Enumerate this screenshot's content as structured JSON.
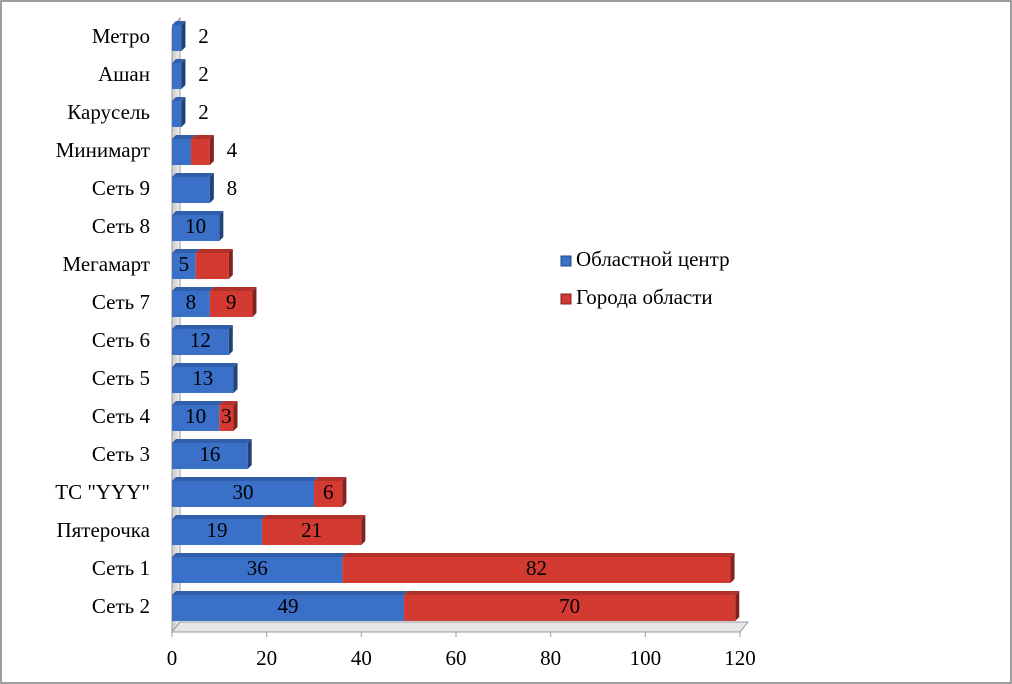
{
  "chart_data": {
    "type": "bar",
    "orientation": "horizontal",
    "stacked": true,
    "categories": [
      "Метро",
      "Ашан",
      "Карусель",
      "Минимарт",
      "Сеть 9",
      "Сеть 8",
      "Мегамарт",
      "Сеть 7",
      "Сеть 6",
      "Сеть 5",
      "Сеть 4",
      "Сеть 3",
      "ТС \"YYY\"",
      "Пятерочка",
      "Сеть 1",
      "Сеть 2"
    ],
    "series": [
      {
        "name": "Областной центр",
        "color": "#3a70c8",
        "values": [
          2,
          2,
          2,
          4,
          8,
          10,
          5,
          8,
          12,
          13,
          10,
          16,
          30,
          19,
          36,
          49
        ],
        "value_labels": [
          "2",
          "2",
          "2",
          null,
          "8",
          "10",
          "5",
          "8",
          "12",
          "13",
          "10",
          "16",
          "30",
          "19",
          "36",
          "49"
        ]
      },
      {
        "name": "Города области",
        "color": "#d23a32",
        "values": [
          null,
          null,
          null,
          4,
          null,
          null,
          7,
          9,
          null,
          null,
          3,
          null,
          6,
          21,
          82,
          70
        ],
        "value_labels": [
          null,
          null,
          null,
          "4",
          null,
          null,
          null,
          "9",
          null,
          null,
          "3",
          null,
          "6",
          "21",
          "82",
          "70"
        ]
      }
    ],
    "xlim": [
      0,
      120
    ],
    "xticks": [
      0,
      20,
      40,
      60,
      80,
      100,
      120
    ],
    "legend": "right"
  }
}
